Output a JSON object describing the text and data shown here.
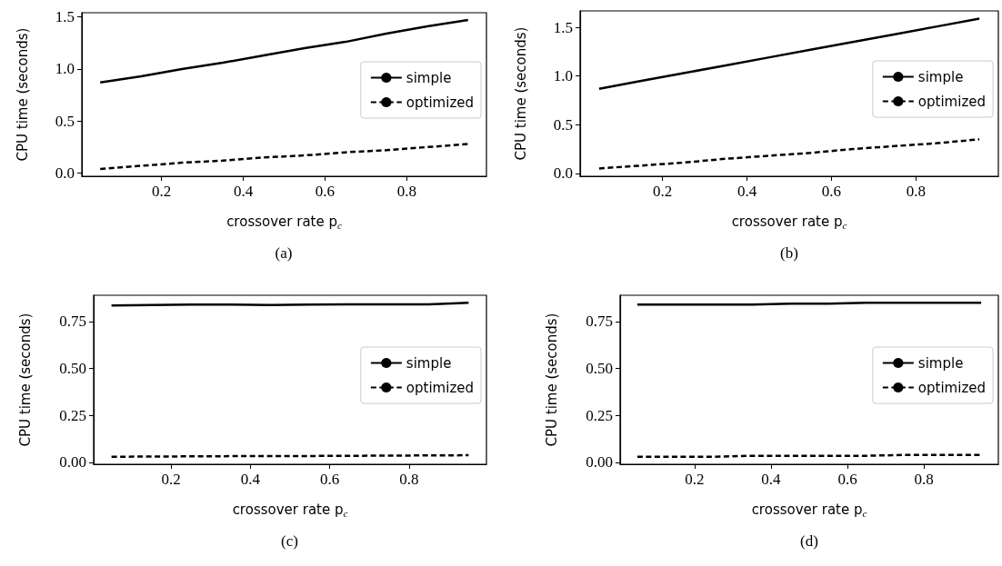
{
  "chart_data": [
    {
      "type": "line",
      "x": [
        0.05,
        0.15,
        0.25,
        0.35,
        0.45,
        0.55,
        0.65,
        0.75,
        0.85,
        0.95
      ],
      "xlabel": "crossover rate p$_{c}$",
      "ylabel": "CPU time (seconds)",
      "annotations": [
        "(a)"
      ],
      "xlim": [
        0.005,
        0.995
      ],
      "xticks": [
        0.2,
        0.4,
        0.6,
        0.8
      ],
      "ylim": [
        -0.03,
        1.54
      ],
      "yticks": [
        {
          "value": 0,
          "label": "0.0"
        },
        0.5,
        {
          "value": 1,
          "label": "1.0"
        },
        1.5
      ],
      "grid": false,
      "legend": "right",
      "marker": "none",
      "series": [
        {
          "name": "simple",
          "color": "#000000",
          "line_style": "solid",
          "values": [
            0.87,
            0.93,
            1.0,
            1.06,
            1.13,
            1.2,
            1.26,
            1.34,
            1.41,
            1.47
          ]
        },
        {
          "name": "optimized",
          "color": "#000000",
          "line_style": "dashed",
          "values": [
            0.04,
            0.07,
            0.1,
            0.12,
            0.15,
            0.17,
            0.2,
            0.22,
            0.25,
            0.28
          ]
        }
      ]
    },
    {
      "type": "line",
      "x": [
        0.05,
        0.15,
        0.25,
        0.35,
        0.45,
        0.55,
        0.65,
        0.75,
        0.85,
        0.95
      ],
      "xlabel": "crossover rate p$_{c}$",
      "ylabel": "CPU time (seconds)",
      "annotations": [
        "(b)"
      ],
      "xlim": [
        0.005,
        0.995
      ],
      "xticks": [
        0.2,
        0.4,
        0.6,
        0.8
      ],
      "ylim": [
        -0.03,
        1.67
      ],
      "yticks": [
        {
          "value": 0,
          "label": "0.0"
        },
        0.5,
        {
          "value": 1,
          "label": "1.0"
        },
        1.5
      ],
      "grid": false,
      "legend": "right",
      "marker": "none",
      "series": [
        {
          "name": "simple",
          "color": "#000000",
          "line_style": "solid",
          "values": [
            0.87,
            0.95,
            1.03,
            1.11,
            1.19,
            1.27,
            1.35,
            1.43,
            1.51,
            1.59
          ]
        },
        {
          "name": "optimized",
          "color": "#000000",
          "line_style": "dashed",
          "values": [
            0.05,
            0.08,
            0.11,
            0.15,
            0.18,
            0.21,
            0.25,
            0.28,
            0.31,
            0.35
          ]
        }
      ]
    },
    {
      "type": "line",
      "x": [
        0.05,
        0.15,
        0.25,
        0.35,
        0.45,
        0.55,
        0.65,
        0.75,
        0.85,
        0.95
      ],
      "xlabel": "crossover rate p$_{c}$",
      "ylabel": "CPU time (seconds)",
      "annotations": [
        "(c)"
      ],
      "xlim": [
        0.005,
        0.995
      ],
      "xticks": [
        0.2,
        0.4,
        0.6,
        0.8
      ],
      "ylim": [
        -0.01,
        0.89
      ],
      "yticks": [
        {
          "value": 0,
          "label": "0.00"
        },
        0.25,
        {
          "value": 0.5,
          "label": "0.50"
        },
        0.75
      ],
      "grid": false,
      "legend": "right",
      "marker": "none",
      "series": [
        {
          "name": "simple",
          "color": "#000000",
          "line_style": "solid",
          "values": [
            0.835,
            0.838,
            0.84,
            0.84,
            0.838,
            0.84,
            0.842,
            0.842,
            0.842,
            0.85
          ]
        },
        {
          "name": "optimized",
          "color": "#000000",
          "line_style": "dashed",
          "values": [
            0.03,
            0.031,
            0.032,
            0.033,
            0.033,
            0.034,
            0.035,
            0.036,
            0.037,
            0.038
          ]
        }
      ]
    },
    {
      "type": "line",
      "x": [
        0.05,
        0.15,
        0.25,
        0.35,
        0.45,
        0.55,
        0.65,
        0.75,
        0.85,
        0.95
      ],
      "xlabel": "crossover rate p$_{c}$",
      "ylabel": "CPU time (seconds)",
      "annotations": [
        "(d)"
      ],
      "xlim": [
        0.005,
        0.995
      ],
      "xticks": [
        0.2,
        0.4,
        0.6,
        0.8
      ],
      "ylim": [
        -0.01,
        0.89
      ],
      "yticks": [
        {
          "value": 0,
          "label": "0.00"
        },
        0.25,
        {
          "value": 0.5,
          "label": "0.50"
        },
        0.75
      ],
      "grid": false,
      "legend": "right",
      "marker": "none",
      "series": [
        {
          "name": "simple",
          "color": "#000000",
          "line_style": "solid",
          "values": [
            0.84,
            0.84,
            0.84,
            0.84,
            0.845,
            0.845,
            0.85,
            0.85,
            0.85,
            0.85
          ]
        },
        {
          "name": "optimized",
          "color": "#000000",
          "line_style": "dashed",
          "values": [
            0.03,
            0.03,
            0.03,
            0.035,
            0.035,
            0.035,
            0.035,
            0.04,
            0.04,
            0.04
          ]
        }
      ]
    }
  ]
}
